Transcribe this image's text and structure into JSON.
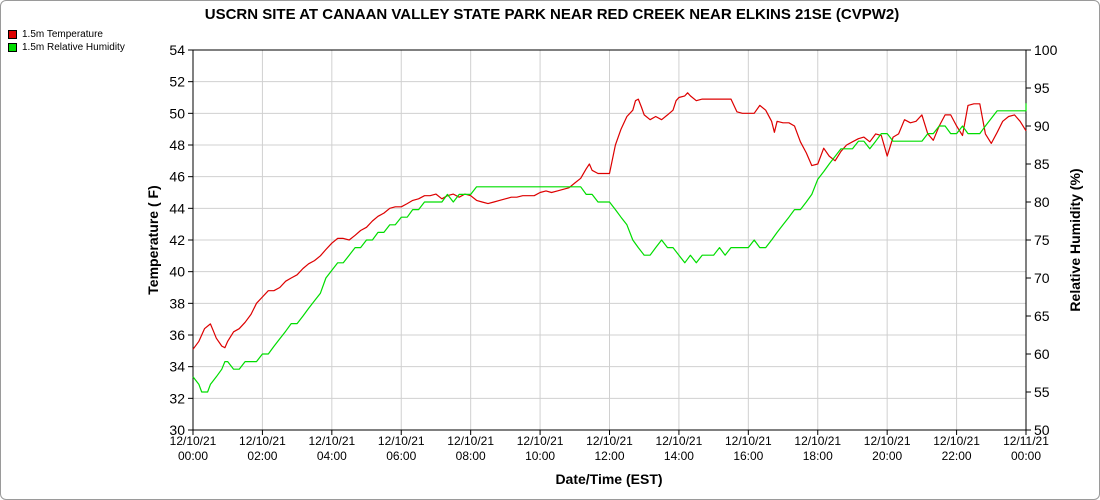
{
  "chart_data": {
    "type": "line",
    "title": "USCRN SITE AT CANAAN VALLEY STATE PARK NEAR RED CREEK NEAR ELKINS 21SE (CVPW2)",
    "xlabel": "Date/Time (EST)",
    "ylabel_left": "Temperature ( F)",
    "ylabel_right": "Relative Humidity (%)",
    "xlim": [
      0,
      24
    ],
    "ylim_left": [
      30,
      54
    ],
    "ylim_right": [
      50,
      100
    ],
    "yticks_left": [
      30,
      32,
      34,
      36,
      38,
      40,
      42,
      44,
      46,
      48,
      50,
      52,
      54
    ],
    "yticks_right": [
      50,
      55,
      60,
      65,
      70,
      75,
      80,
      85,
      90,
      95,
      100
    ],
    "xticks": [
      {
        "x": 0,
        "date": "12/10/21",
        "time": "00:00"
      },
      {
        "x": 2,
        "date": "12/10/21",
        "time": "02:00"
      },
      {
        "x": 4,
        "date": "12/10/21",
        "time": "04:00"
      },
      {
        "x": 6,
        "date": "12/10/21",
        "time": "06:00"
      },
      {
        "x": 8,
        "date": "12/10/21",
        "time": "08:00"
      },
      {
        "x": 10,
        "date": "12/10/21",
        "time": "10:00"
      },
      {
        "x": 12,
        "date": "12/10/21",
        "time": "12:00"
      },
      {
        "x": 14,
        "date": "12/10/21",
        "time": "14:00"
      },
      {
        "x": 16,
        "date": "12/10/21",
        "time": "16:00"
      },
      {
        "x": 18,
        "date": "12/10/21",
        "time": "18:00"
      },
      {
        "x": 20,
        "date": "12/10/21",
        "time": "20:00"
      },
      {
        "x": 22,
        "date": "12/10/21",
        "time": "22:00"
      },
      {
        "x": 24,
        "date": "12/11/21",
        "time": "00:00"
      }
    ],
    "grid": true,
    "legend_position": "top-left",
    "series": [
      {
        "name": "1.5m Temperature",
        "color": "#dd0000",
        "axis": "left",
        "points": [
          [
            0,
            35.1
          ],
          [
            0.17,
            35.6
          ],
          [
            0.33,
            36.4
          ],
          [
            0.5,
            36.7
          ],
          [
            0.58,
            36.3
          ],
          [
            0.67,
            35.8
          ],
          [
            0.83,
            35.3
          ],
          [
            0.92,
            35.2
          ],
          [
            1.0,
            35.6
          ],
          [
            1.17,
            36.2
          ],
          [
            1.33,
            36.4
          ],
          [
            1.5,
            36.8
          ],
          [
            1.67,
            37.3
          ],
          [
            1.83,
            38.0
          ],
          [
            2.0,
            38.4
          ],
          [
            2.17,
            38.8
          ],
          [
            2.33,
            38.8
          ],
          [
            2.5,
            39.0
          ],
          [
            2.67,
            39.4
          ],
          [
            2.83,
            39.6
          ],
          [
            3.0,
            39.8
          ],
          [
            3.17,
            40.2
          ],
          [
            3.33,
            40.5
          ],
          [
            3.5,
            40.7
          ],
          [
            3.67,
            41.0
          ],
          [
            3.83,
            41.4
          ],
          [
            4.0,
            41.8
          ],
          [
            4.17,
            42.1
          ],
          [
            4.33,
            42.1
          ],
          [
            4.5,
            42.0
          ],
          [
            4.67,
            42.3
          ],
          [
            4.83,
            42.6
          ],
          [
            5.0,
            42.8
          ],
          [
            5.17,
            43.2
          ],
          [
            5.33,
            43.5
          ],
          [
            5.5,
            43.7
          ],
          [
            5.67,
            44.0
          ],
          [
            5.83,
            44.1
          ],
          [
            6.0,
            44.1
          ],
          [
            6.17,
            44.3
          ],
          [
            6.33,
            44.5
          ],
          [
            6.5,
            44.6
          ],
          [
            6.67,
            44.8
          ],
          [
            6.83,
            44.8
          ],
          [
            7.0,
            44.9
          ],
          [
            7.17,
            44.6
          ],
          [
            7.33,
            44.8
          ],
          [
            7.5,
            44.9
          ],
          [
            7.67,
            44.7
          ],
          [
            7.83,
            44.9
          ],
          [
            8.0,
            44.8
          ],
          [
            8.17,
            44.5
          ],
          [
            8.33,
            44.4
          ],
          [
            8.5,
            44.3
          ],
          [
            8.67,
            44.4
          ],
          [
            8.83,
            44.5
          ],
          [
            9.0,
            44.6
          ],
          [
            9.17,
            44.7
          ],
          [
            9.33,
            44.7
          ],
          [
            9.5,
            44.8
          ],
          [
            9.67,
            44.8
          ],
          [
            9.83,
            44.8
          ],
          [
            10.0,
            45.0
          ],
          [
            10.17,
            45.1
          ],
          [
            10.33,
            45.0
          ],
          [
            10.5,
            45.1
          ],
          [
            10.67,
            45.2
          ],
          [
            10.83,
            45.3
          ],
          [
            11.0,
            45.6
          ],
          [
            11.17,
            45.9
          ],
          [
            11.33,
            46.5
          ],
          [
            11.42,
            46.8
          ],
          [
            11.5,
            46.4
          ],
          [
            11.67,
            46.2
          ],
          [
            11.83,
            46.2
          ],
          [
            12.0,
            46.2
          ],
          [
            12.17,
            48.0
          ],
          [
            12.33,
            49.0
          ],
          [
            12.5,
            49.8
          ],
          [
            12.67,
            50.2
          ],
          [
            12.75,
            50.8
          ],
          [
            12.83,
            50.9
          ],
          [
            12.92,
            50.4
          ],
          [
            13.0,
            49.9
          ],
          [
            13.17,
            49.6
          ],
          [
            13.33,
            49.8
          ],
          [
            13.5,
            49.6
          ],
          [
            13.67,
            49.9
          ],
          [
            13.83,
            50.2
          ],
          [
            13.92,
            50.8
          ],
          [
            14.0,
            51.0
          ],
          [
            14.17,
            51.1
          ],
          [
            14.25,
            51.3
          ],
          [
            14.33,
            51.1
          ],
          [
            14.5,
            50.8
          ],
          [
            14.67,
            50.9
          ],
          [
            14.83,
            50.9
          ],
          [
            15.0,
            50.9
          ],
          [
            15.17,
            50.9
          ],
          [
            15.33,
            50.9
          ],
          [
            15.5,
            50.9
          ],
          [
            15.67,
            50.1
          ],
          [
            15.83,
            50.0
          ],
          [
            16.0,
            50.0
          ],
          [
            16.17,
            50.0
          ],
          [
            16.33,
            50.5
          ],
          [
            16.5,
            50.2
          ],
          [
            16.67,
            49.5
          ],
          [
            16.75,
            48.8
          ],
          [
            16.83,
            49.5
          ],
          [
            17.0,
            49.4
          ],
          [
            17.17,
            49.4
          ],
          [
            17.33,
            49.2
          ],
          [
            17.5,
            48.2
          ],
          [
            17.67,
            47.5
          ],
          [
            17.83,
            46.7
          ],
          [
            18.0,
            46.8
          ],
          [
            18.17,
            47.8
          ],
          [
            18.33,
            47.3
          ],
          [
            18.5,
            47.0
          ],
          [
            18.67,
            47.6
          ],
          [
            18.83,
            48.0
          ],
          [
            19.0,
            48.2
          ],
          [
            19.17,
            48.4
          ],
          [
            19.33,
            48.5
          ],
          [
            19.5,
            48.2
          ],
          [
            19.67,
            48.7
          ],
          [
            19.83,
            48.6
          ],
          [
            20.0,
            47.3
          ],
          [
            20.17,
            48.5
          ],
          [
            20.33,
            48.7
          ],
          [
            20.5,
            49.6
          ],
          [
            20.67,
            49.4
          ],
          [
            20.83,
            49.5
          ],
          [
            21.0,
            49.9
          ],
          [
            21.17,
            48.7
          ],
          [
            21.33,
            48.3
          ],
          [
            21.5,
            49.2
          ],
          [
            21.67,
            49.9
          ],
          [
            21.83,
            49.9
          ],
          [
            22.0,
            49.2
          ],
          [
            22.17,
            48.6
          ],
          [
            22.33,
            50.5
          ],
          [
            22.5,
            50.6
          ],
          [
            22.67,
            50.6
          ],
          [
            22.83,
            48.7
          ],
          [
            23.0,
            48.1
          ],
          [
            23.17,
            48.8
          ],
          [
            23.33,
            49.5
          ],
          [
            23.5,
            49.8
          ],
          [
            23.67,
            49.9
          ],
          [
            23.83,
            49.5
          ],
          [
            24.0,
            48.9
          ]
        ]
      },
      {
        "name": "1.5m Relative Humidity",
        "color": "#00dd00",
        "axis": "right",
        "points": [
          [
            0,
            57
          ],
          [
            0.17,
            56
          ],
          [
            0.25,
            55
          ],
          [
            0.42,
            55
          ],
          [
            0.5,
            56
          ],
          [
            0.67,
            57
          ],
          [
            0.83,
            58
          ],
          [
            0.92,
            59
          ],
          [
            1.0,
            59
          ],
          [
            1.17,
            58
          ],
          [
            1.33,
            58
          ],
          [
            1.5,
            59
          ],
          [
            1.83,
            59
          ],
          [
            2.0,
            60
          ],
          [
            2.17,
            60
          ],
          [
            2.33,
            61
          ],
          [
            2.5,
            62
          ],
          [
            2.67,
            63
          ],
          [
            2.83,
            64
          ],
          [
            3.0,
            64
          ],
          [
            3.17,
            65
          ],
          [
            3.33,
            66
          ],
          [
            3.5,
            67
          ],
          [
            3.67,
            68
          ],
          [
            3.83,
            70
          ],
          [
            4.0,
            71
          ],
          [
            4.17,
            72
          ],
          [
            4.33,
            72
          ],
          [
            4.5,
            73
          ],
          [
            4.67,
            74
          ],
          [
            4.83,
            74
          ],
          [
            5.0,
            75
          ],
          [
            5.17,
            75
          ],
          [
            5.33,
            76
          ],
          [
            5.5,
            76
          ],
          [
            5.67,
            77
          ],
          [
            5.83,
            77
          ],
          [
            6.0,
            78
          ],
          [
            6.17,
            78
          ],
          [
            6.33,
            79
          ],
          [
            6.5,
            79
          ],
          [
            6.67,
            80
          ],
          [
            7.0,
            80
          ],
          [
            7.17,
            80
          ],
          [
            7.33,
            81
          ],
          [
            7.5,
            80
          ],
          [
            7.67,
            81
          ],
          [
            8.0,
            81
          ],
          [
            8.17,
            82
          ],
          [
            8.5,
            82
          ],
          [
            9.0,
            82
          ],
          [
            10.0,
            82
          ],
          [
            11.0,
            82
          ],
          [
            11.17,
            82
          ],
          [
            11.33,
            81
          ],
          [
            11.5,
            81
          ],
          [
            11.67,
            80
          ],
          [
            12.0,
            80
          ],
          [
            12.17,
            79
          ],
          [
            12.33,
            78
          ],
          [
            12.5,
            77
          ],
          [
            12.67,
            75
          ],
          [
            12.83,
            74
          ],
          [
            13.0,
            73
          ],
          [
            13.17,
            73
          ],
          [
            13.33,
            74
          ],
          [
            13.5,
            75
          ],
          [
            13.67,
            74
          ],
          [
            13.83,
            74
          ],
          [
            14.0,
            73
          ],
          [
            14.17,
            72
          ],
          [
            14.33,
            73
          ],
          [
            14.5,
            72
          ],
          [
            14.67,
            73
          ],
          [
            15.0,
            73
          ],
          [
            15.17,
            74
          ],
          [
            15.33,
            73
          ],
          [
            15.5,
            74
          ],
          [
            15.83,
            74
          ],
          [
            16.0,
            74
          ],
          [
            16.17,
            75
          ],
          [
            16.33,
            74
          ],
          [
            16.5,
            74
          ],
          [
            16.67,
            75
          ],
          [
            16.83,
            76
          ],
          [
            17.0,
            77
          ],
          [
            17.17,
            78
          ],
          [
            17.33,
            79
          ],
          [
            17.5,
            79
          ],
          [
            17.67,
            80
          ],
          [
            17.83,
            81
          ],
          [
            18.0,
            83
          ],
          [
            18.17,
            84
          ],
          [
            18.33,
            85
          ],
          [
            18.5,
            86
          ],
          [
            18.67,
            87
          ],
          [
            19.0,
            87
          ],
          [
            19.17,
            88
          ],
          [
            19.33,
            88
          ],
          [
            19.5,
            87
          ],
          [
            19.67,
            88
          ],
          [
            19.83,
            89
          ],
          [
            20.0,
            89
          ],
          [
            20.17,
            88
          ],
          [
            20.5,
            88
          ],
          [
            21.0,
            88
          ],
          [
            21.17,
            89
          ],
          [
            21.33,
            89
          ],
          [
            21.5,
            90
          ],
          [
            21.67,
            90
          ],
          [
            21.83,
            89
          ],
          [
            22.0,
            89
          ],
          [
            22.17,
            90
          ],
          [
            22.33,
            89
          ],
          [
            22.67,
            89
          ],
          [
            22.83,
            90
          ],
          [
            23.0,
            91
          ],
          [
            23.17,
            92
          ],
          [
            23.5,
            92
          ],
          [
            24.0,
            92
          ],
          [
            24.0,
            93
          ]
        ]
      }
    ]
  }
}
